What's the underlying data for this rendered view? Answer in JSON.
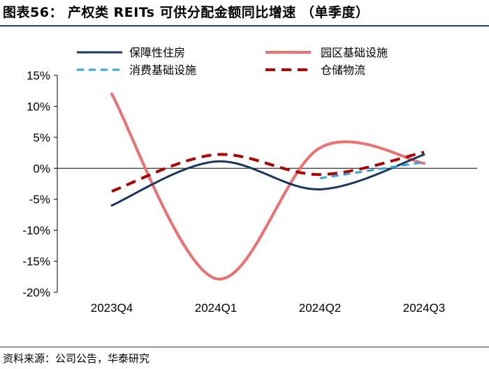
{
  "title": "图表56：  产权类 REITs 可供分配金额同比增速  （单季度）",
  "source": "资料来源：公司公告，华泰研究",
  "chart_data": {
    "type": "line",
    "title": "产权类 REITs 可供分配金额同比增速（单季度）",
    "categories": [
      "2023Q4",
      "2024Q1",
      "2024Q2",
      "2024Q3"
    ],
    "y_ticks": [
      "15%",
      "10%",
      "5%",
      "0%",
      "-5%",
      "-10%",
      "-15%",
      "-20%"
    ],
    "ylim": [
      -20,
      15
    ],
    "y_unit": "%",
    "smooth": true,
    "legend_position": "top",
    "series": [
      {
        "name": "保障性住房",
        "values": [
          -6.0,
          1.1,
          -3.4,
          2.2
        ],
        "color": "#17375e",
        "dash": "solid",
        "width": 3
      },
      {
        "name": "园区基础设施",
        "values": [
          12.0,
          -17.8,
          3.3,
          0.8
        ],
        "color": "#f26d6d",
        "dash": "solid",
        "width": 4
      },
      {
        "name": "消费基础设施",
        "values": [
          null,
          null,
          -1.6,
          1.0
        ],
        "color": "#2da6e0",
        "dash": "dashed",
        "width": 3
      },
      {
        "name": "仓储物流",
        "values": [
          -3.7,
          2.2,
          -1.0,
          2.6
        ],
        "color": "#b00000",
        "dash": "dashed",
        "width": 4
      }
    ]
  }
}
